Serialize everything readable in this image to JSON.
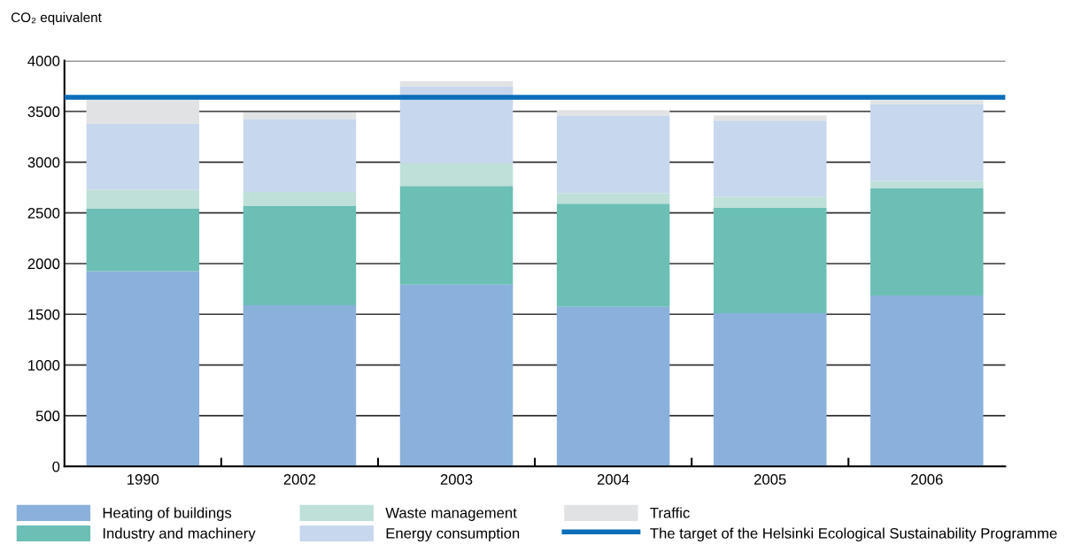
{
  "chart_data": {
    "type": "bar",
    "stacked": true,
    "ylabel": "CO₂ equivalent",
    "categories": [
      "1990",
      "2002",
      "2003",
      "2004",
      "2005",
      "2006"
    ],
    "series": [
      {
        "name": "Heating of buildings",
        "color": "#8ab1dc",
        "values": [
          1925,
          1590,
          1792,
          1574,
          1512,
          1686
        ]
      },
      {
        "name": "Industry and machinery",
        "color": "#6bbfb5",
        "values": [
          615,
          981,
          972,
          1016,
          1038,
          1059
        ]
      },
      {
        "name": "Waste management",
        "color": "#bee0d9",
        "values": [
          187,
          134,
          226,
          102,
          111,
          71
        ]
      },
      {
        "name": "Energy consumption",
        "color": "#c7d7ed",
        "values": [
          655,
          720,
          758,
          768,
          749,
          755
        ]
      },
      {
        "name": "Traffic",
        "color": "#e1e2e3",
        "values": [
          230,
          66,
          50,
          52,
          50,
          38
        ]
      }
    ],
    "ref_lines": [
      {
        "axis": "y",
        "value": 3640,
        "label": "The target of the Helsinki Ecological Sustainability Programme",
        "color": "#0a6eb9",
        "line_style": "solid"
      }
    ],
    "ylim": [
      0,
      4000
    ],
    "yticks": [
      0,
      500,
      1000,
      1500,
      2000,
      2500,
      3000,
      3500,
      4000
    ],
    "grid": "y",
    "legend": "bottom"
  }
}
